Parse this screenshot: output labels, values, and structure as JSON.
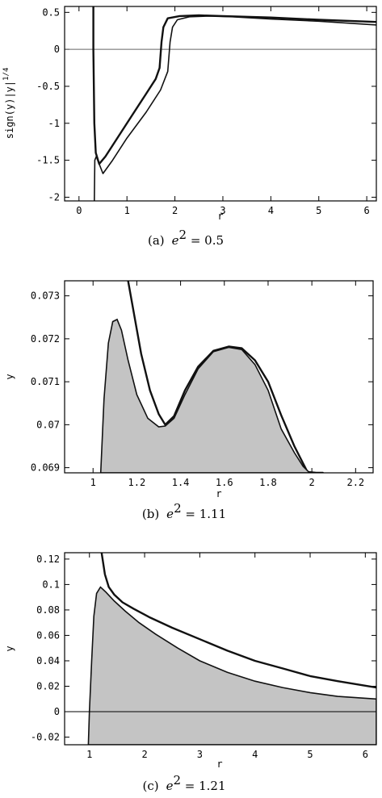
{
  "chart_data": [
    {
      "type": "line",
      "panel": "a",
      "caption": "(a)  e² = 0.5",
      "caption_prefix": "(a)",
      "caption_math": "e",
      "caption_exp": "2",
      "caption_value": " = 0.5",
      "xlabel": "r",
      "ylabel": "sign(y)|y|",
      "ylabel_exp": "1/4",
      "xlim": [
        -0.3,
        6.2
      ],
      "ylim": [
        -2.05,
        0.58
      ],
      "xticks": [
        0,
        1,
        2,
        3,
        4,
        5,
        6
      ],
      "yticks": [
        0.5,
        0,
        -0.5,
        -1,
        -1.5,
        -2
      ],
      "zero_line": true,
      "series": [
        {
          "style": "thick",
          "x": [
            0.3,
            0.3,
            0.31,
            0.32,
            0.35,
            0.42,
            0.55,
            0.8,
            1.1,
            1.4,
            1.6,
            1.68,
            1.72,
            1.76,
            1.85,
            2.1,
            2.5,
            3,
            4,
            5,
            6.2
          ],
          "y": [
            0.58,
            0,
            -0.5,
            -1.0,
            -1.4,
            -1.55,
            -1.45,
            -1.2,
            -0.9,
            -0.6,
            -0.4,
            -0.25,
            0.1,
            0.3,
            0.42,
            0.45,
            0.46,
            0.45,
            0.43,
            0.4,
            0.37
          ]
        },
        {
          "style": "thin",
          "x": [
            0.32,
            0.33,
            0.36,
            0.42,
            0.5,
            0.7,
            1.0,
            1.4,
            1.7,
            1.85,
            1.9,
            1.95,
            2.05,
            2.3,
            2.7,
            3.2,
            4,
            5,
            6.2
          ],
          "y": [
            -2.05,
            -1.5,
            -1.45,
            -1.55,
            -1.68,
            -1.5,
            -1.2,
            -0.85,
            -0.55,
            -0.3,
            0.1,
            0.3,
            0.4,
            0.44,
            0.45,
            0.44,
            0.41,
            0.38,
            0.33
          ]
        }
      ]
    },
    {
      "type": "area",
      "panel": "b",
      "caption": "(b)  e² = 1.11",
      "caption_prefix": "(b)",
      "caption_math": "e",
      "caption_exp": "2",
      "caption_value": " = 1.11",
      "xlabel": "r",
      "ylabel": "y",
      "xlim": [
        0.87,
        2.28
      ],
      "ylim": [
        0.06888,
        0.07335
      ],
      "xticks": [
        1,
        1.2,
        1.4,
        1.6,
        1.8,
        2,
        2.2
      ],
      "xtick_labels": [
        "1",
        "1.2",
        "1.4",
        "1.6",
        "1.8",
        "2",
        "2.2"
      ],
      "yticks": [
        0.069,
        0.07,
        0.071,
        0.072,
        0.073
      ],
      "ytick_labels": [
        "0.069",
        "0.07",
        "0.071",
        "0.072",
        "0.073"
      ],
      "series": [
        {
          "style": "thick",
          "x": [
            1.16,
            1.19,
            1.22,
            1.26,
            1.3,
            1.33,
            1.37,
            1.42,
            1.48,
            1.55,
            1.62,
            1.68,
            1.74,
            1.8,
            1.86,
            1.92,
            1.98,
            2.02,
            2.05
          ],
          "y": [
            0.07335,
            0.0725,
            0.07165,
            0.0708,
            0.07025,
            0.07,
            0.0702,
            0.0708,
            0.07135,
            0.07172,
            0.07182,
            0.07178,
            0.0715,
            0.071,
            0.07022,
            0.0695,
            0.0689,
            0.06888,
            0.06888
          ]
        },
        {
          "style": "shaded",
          "x": [
            1.035,
            1.05,
            1.07,
            1.09,
            1.11,
            1.13,
            1.16,
            1.2,
            1.25,
            1.3,
            1.33,
            1.37,
            1.42,
            1.48,
            1.55,
            1.62,
            1.68,
            1.74,
            1.8,
            1.86,
            1.92,
            1.96,
            1.99
          ],
          "y": [
            0.06888,
            0.0706,
            0.0719,
            0.0724,
            0.07245,
            0.0722,
            0.0715,
            0.0707,
            0.07015,
            0.06995,
            0.06997,
            0.07015,
            0.0707,
            0.0713,
            0.0717,
            0.0718,
            0.07175,
            0.0714,
            0.0708,
            0.0699,
            0.06935,
            0.06903,
            0.06888
          ]
        }
      ]
    },
    {
      "type": "area",
      "panel": "c",
      "caption": "(c)  e² = 1.21",
      "caption_prefix": "(c)",
      "caption_math": "e",
      "caption_exp": "2",
      "caption_value": " = 1.21",
      "xlabel": "r",
      "ylabel": "y",
      "xlim": [
        0.55,
        6.2
      ],
      "ylim": [
        -0.026,
        0.125
      ],
      "xticks": [
        1,
        2,
        3,
        4,
        5,
        6
      ],
      "yticks": [
        0.12,
        0.1,
        0.08,
        0.06,
        0.04,
        0.02,
        0,
        -0.02
      ],
      "ytick_labels": [
        "0.12",
        "0.1",
        "0.08",
        "0.06",
        "0.04",
        "0.02",
        "0",
        "-0.02"
      ],
      "zero_line": true,
      "series": [
        {
          "style": "thick",
          "x": [
            1.22,
            1.28,
            1.35,
            1.45,
            1.6,
            1.8,
            2.1,
            2.5,
            3,
            3.5,
            4,
            4.5,
            5,
            5.5,
            6.2
          ],
          "y": [
            0.125,
            0.108,
            0.098,
            0.092,
            0.086,
            0.081,
            0.074,
            0.066,
            0.057,
            0.048,
            0.04,
            0.034,
            0.028,
            0.024,
            0.019
          ]
        },
        {
          "style": "shaded",
          "x": [
            0.98,
            1.0,
            1.04,
            1.08,
            1.13,
            1.2,
            1.3,
            1.45,
            1.65,
            1.9,
            2.2,
            2.6,
            3,
            3.5,
            4,
            4.5,
            5,
            5.5,
            6.2
          ],
          "y": [
            -0.026,
            0,
            0.04,
            0.075,
            0.093,
            0.098,
            0.094,
            0.087,
            0.079,
            0.07,
            0.061,
            0.05,
            0.04,
            0.031,
            0.024,
            0.019,
            0.015,
            0.012,
            0.01
          ]
        }
      ]
    }
  ]
}
